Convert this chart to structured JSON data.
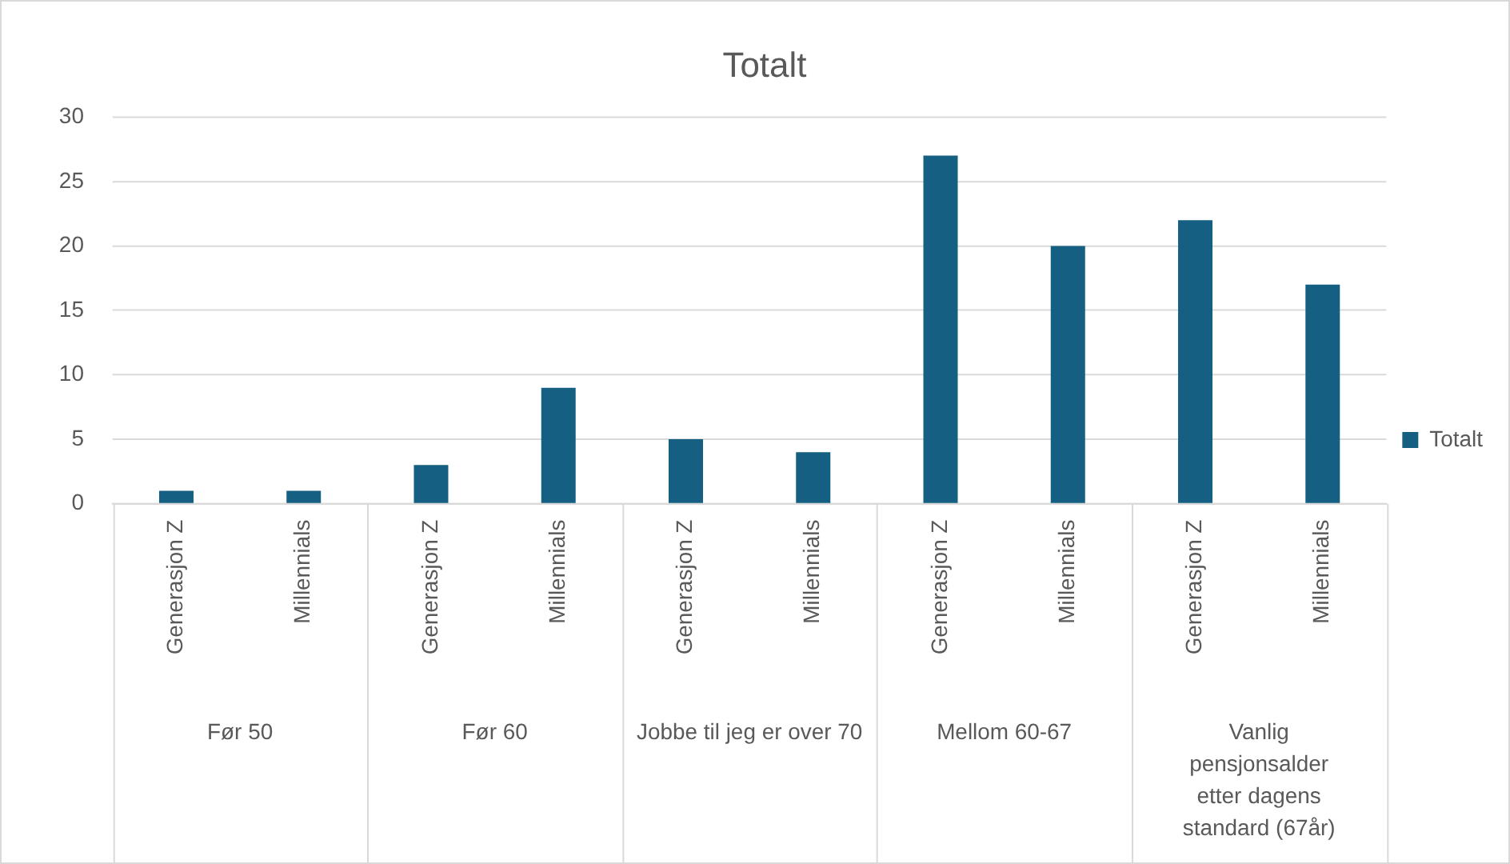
{
  "chart_data": {
    "type": "bar",
    "title": "Totalt",
    "categories": [
      "Generasjon Z",
      "Millennials",
      "Generasjon Z",
      "Millennials",
      "Generasjon Z",
      "Millennials",
      "Generasjon Z",
      "Millennials",
      "Generasjon Z",
      "Millennials"
    ],
    "series": [
      {
        "name": "Totalt",
        "color": "#156082",
        "values": [
          1,
          1,
          3,
          9,
          5,
          4,
          27,
          20,
          22,
          17
        ]
      }
    ],
    "annotations": [
      "Før 50",
      "Før 60",
      "Jobbe til jeg er over 70",
      "Mellom 60-67",
      "Vanlig pensjonsalder etter dagens standard (67år)"
    ],
    "ylim": [
      0,
      30
    ],
    "yticks": [
      0,
      5,
      10,
      15,
      20,
      25,
      30
    ],
    "grid": "y",
    "legend": "right"
  }
}
